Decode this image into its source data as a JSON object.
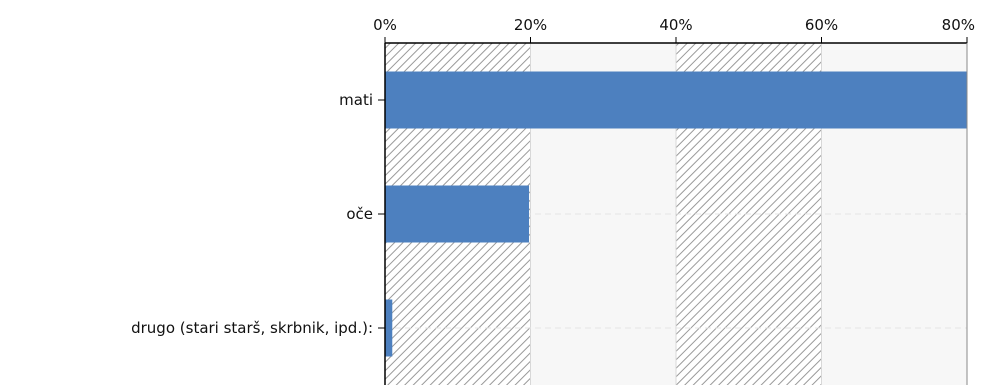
{
  "chart_data": {
    "type": "bar",
    "orientation": "horizontal",
    "categories": [
      "mati",
      "oče",
      "drugo (stari starš, skrbnik, ipd.):"
    ],
    "values": [
      80,
      19.8,
      1
    ],
    "value_format": "percent",
    "xlim": [
      0,
      80
    ],
    "x_ticks": [
      "0%",
      "20%",
      "40%",
      "60%",
      "80%"
    ],
    "x_axis_position": "top",
    "title": "",
    "xlabel": "",
    "ylabel": "",
    "grid": true,
    "legend": "none",
    "colors": {
      "bar": "#4d80bf",
      "hatch": "#9a9a9a",
      "axis": "#000000",
      "grid": "#d8d8d8"
    }
  }
}
